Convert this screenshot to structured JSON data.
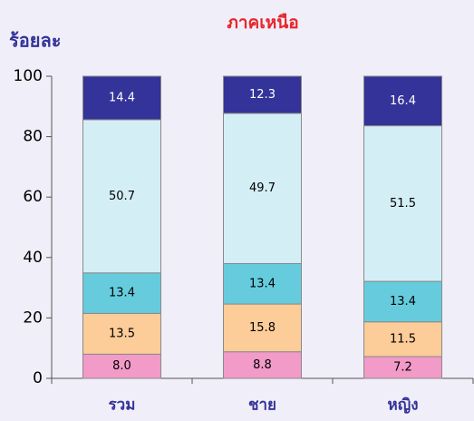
{
  "chart_data": {
    "type": "stacked_bar",
    "title": "ภาคเหนือ",
    "y_label": "ร้อยละ",
    "categories": [
      "รวม",
      "ชาย",
      "หญิง"
    ],
    "series": [
      {
        "color": "#f29ac8",
        "label_color": "#000000",
        "values": [
          8.0,
          8.8,
          7.2
        ],
        "value_labels": [
          "8.0",
          "8.8",
          "7.2"
        ]
      },
      {
        "color": "#fccc99",
        "label_color": "#000000",
        "values": [
          13.5,
          15.8,
          11.5
        ],
        "value_labels": [
          "13.5",
          "15.8",
          "11.5"
        ]
      },
      {
        "color": "#66ccdd",
        "label_color": "#000000",
        "values": [
          13.4,
          13.4,
          13.4
        ],
        "value_labels": [
          "13.4",
          "13.4",
          "13.4"
        ]
      },
      {
        "color": "#d4eef6",
        "label_color": "#000000",
        "values": [
          50.7,
          49.7,
          51.5
        ],
        "value_labels": [
          "50.7",
          "49.7",
          "51.5"
        ]
      },
      {
        "color": "#333399",
        "label_color": "#ffffff",
        "values": [
          14.4,
          12.3,
          16.4
        ],
        "value_labels": [
          "14.4",
          "12.3",
          "16.4"
        ]
      }
    ],
    "ylim": [
      0,
      100
    ],
    "yticks": [
      0,
      20,
      40,
      60,
      80,
      100
    ]
  }
}
